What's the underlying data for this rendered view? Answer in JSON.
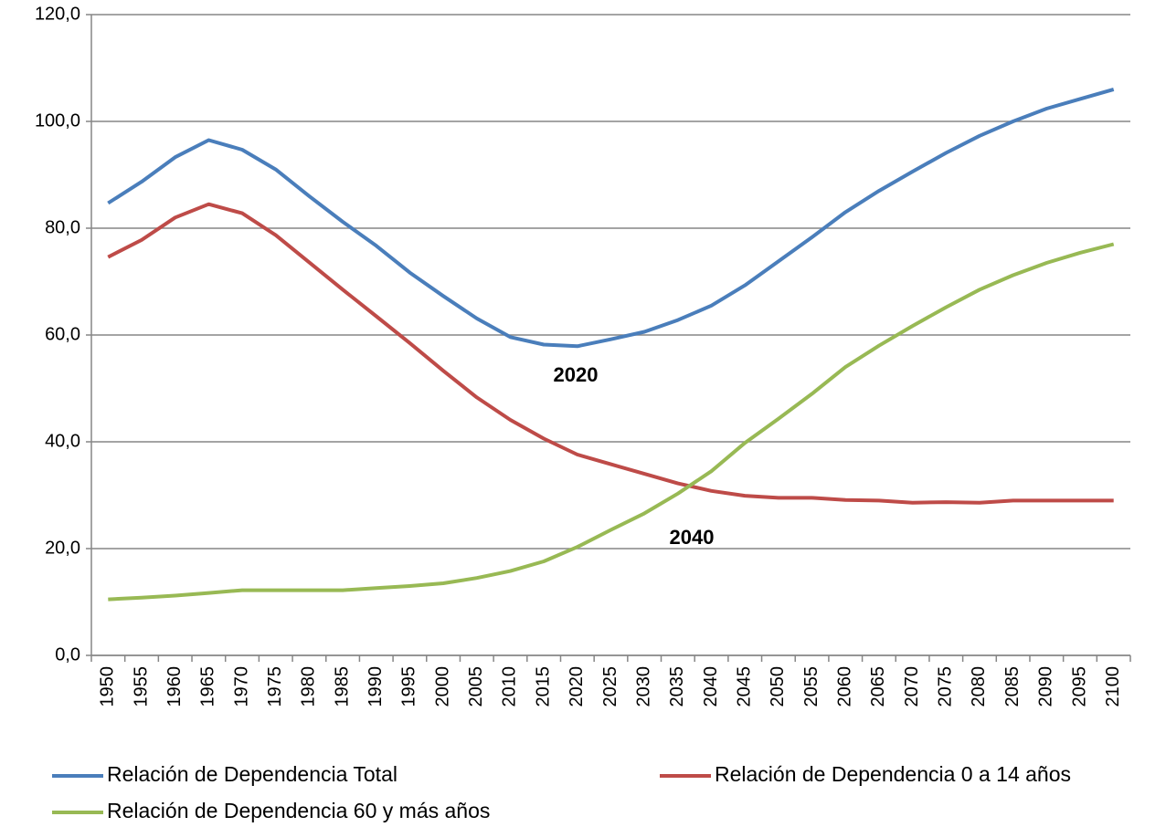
{
  "chart_data": {
    "type": "line",
    "categories": [
      "1950",
      "1955",
      "1960",
      "1965",
      "1970",
      "1975",
      "1980",
      "1985",
      "1990",
      "1995",
      "2000",
      "2005",
      "2010",
      "2015",
      "2020",
      "2025",
      "2030",
      "2035",
      "2040",
      "2045",
      "2050",
      "2055",
      "2060",
      "2065",
      "2070",
      "2075",
      "2080",
      "2085",
      "2090",
      "2095",
      "2100"
    ],
    "series": [
      {
        "name": "Relación de Dependencia Total",
        "color": "#4a7ebb",
        "values": [
          84.7,
          88.7,
          93.3,
          96.5,
          94.7,
          91.0,
          86.0,
          81.2,
          76.7,
          71.7,
          67.3,
          63.1,
          59.6,
          58.2,
          57.9,
          59.2,
          60.6,
          62.8,
          65.5,
          69.3,
          73.8,
          78.3,
          83.0,
          87.0,
          90.6,
          94.1,
          97.3,
          100.0,
          102.4,
          104.2,
          106.0
        ]
      },
      {
        "name": "Relación de Dependencia 0 a 14 años",
        "color": "#be4b48",
        "values": [
          74.6,
          77.8,
          82.0,
          84.5,
          82.8,
          78.7,
          73.6,
          68.5,
          63.5,
          58.5,
          53.3,
          48.3,
          44.1,
          40.6,
          37.6,
          35.8,
          34.0,
          32.2,
          30.8,
          29.9,
          29.5,
          29.5,
          29.1,
          29.0,
          28.6,
          28.7,
          28.6,
          29.0,
          29.0,
          29.0,
          29.0
        ]
      },
      {
        "name": "Relación de Dependencia 60 y más años",
        "color": "#98b954",
        "values": [
          10.5,
          10.8,
          11.2,
          11.7,
          12.2,
          12.2,
          12.2,
          12.2,
          12.6,
          13.0,
          13.5,
          14.5,
          15.8,
          17.6,
          20.3,
          23.5,
          26.6,
          30.3,
          34.5,
          39.8,
          44.3,
          49.0,
          54.0,
          58.0,
          61.7,
          65.2,
          68.5,
          71.2,
          73.5,
          75.4,
          77.0
        ]
      }
    ],
    "ylim": [
      0,
      120
    ],
    "yticks": [
      {
        "value": 0,
        "label": "0,0"
      },
      {
        "value": 20,
        "label": "20,0"
      },
      {
        "value": 40,
        "label": "40,0"
      },
      {
        "value": 60,
        "label": "60,0"
      },
      {
        "value": 80,
        "label": "80,0"
      },
      {
        "value": 100,
        "label": "100,0"
      },
      {
        "value": 120,
        "label": "120,0"
      }
    ],
    "grid": true,
    "annotations": [
      "2020",
      "2040"
    ],
    "legend": "bottom"
  }
}
